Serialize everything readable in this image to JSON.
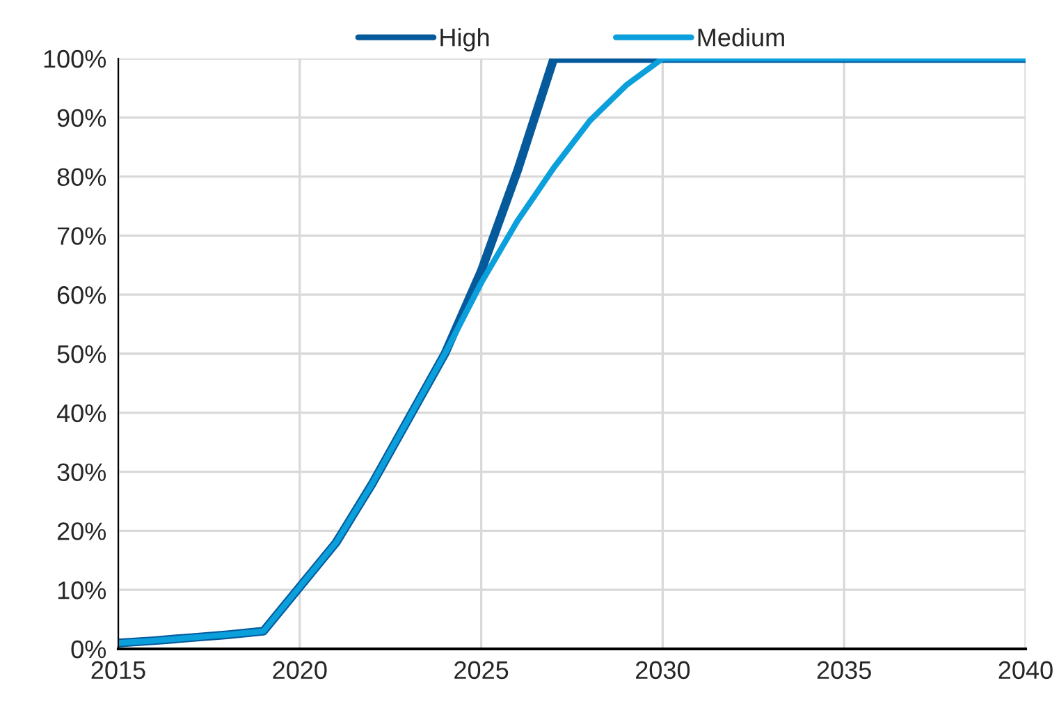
{
  "chart_data": {
    "type": "line",
    "x": [
      2015,
      2016,
      2017,
      2018,
      2019,
      2020,
      2021,
      2022,
      2023,
      2024,
      2025,
      2026,
      2027,
      2028,
      2029,
      2030,
      2031,
      2032,
      2033,
      2034,
      2035,
      2036,
      2037,
      2038,
      2039,
      2040
    ],
    "series": [
      {
        "name": "High",
        "color": "#055a9c",
        "values": [
          1,
          1.4,
          1.9,
          2.4,
          3,
          10.5,
          18,
          28,
          39,
          50,
          64,
          81,
          100,
          100,
          100,
          100,
          100,
          100,
          100,
          100,
          100,
          100,
          100,
          100,
          100,
          100
        ]
      },
      {
        "name": "Medium",
        "color": "#0b9fdc",
        "values": [
          1,
          1.4,
          1.9,
          2.4,
          3,
          10.5,
          18,
          28,
          39,
          50,
          62,
          72.5,
          81.5,
          89.5,
          95.5,
          100,
          100,
          100,
          100,
          100,
          100,
          100,
          100,
          100,
          100,
          100
        ]
      }
    ],
    "xlim": [
      2015,
      2040
    ],
    "xticks": [
      2015,
      2020,
      2025,
      2030,
      2035,
      2040
    ],
    "ylim": [
      0,
      100
    ],
    "yticks": [
      {
        "value": 0,
        "label": "0%"
      },
      {
        "value": 10,
        "label": "10%"
      },
      {
        "value": 20,
        "label": "20%"
      },
      {
        "value": 30,
        "label": "30%"
      },
      {
        "value": 40,
        "label": "40%"
      },
      {
        "value": 50,
        "label": "50%"
      },
      {
        "value": 60,
        "label": "60%"
      },
      {
        "value": 70,
        "label": "70%"
      },
      {
        "value": 80,
        "label": "80%"
      },
      {
        "value": 90,
        "label": "90%"
      },
      {
        "value": 100,
        "label": "100%"
      }
    ],
    "grid": true,
    "legend": "top",
    "marker": "none",
    "line_style": "solid"
  }
}
